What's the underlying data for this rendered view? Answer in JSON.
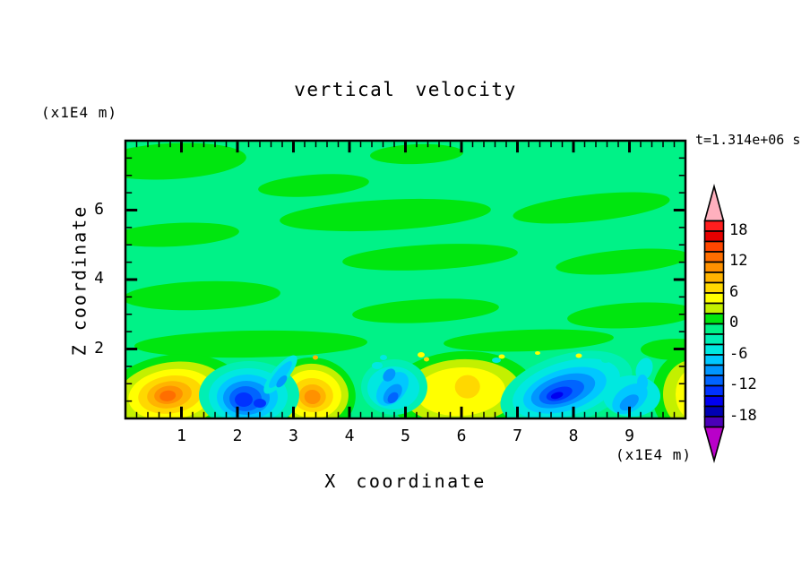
{
  "figure": {
    "title": "vertical velocity",
    "time_annotation": "t=1.314e+06 s"
  },
  "axes": {
    "x": {
      "label": "X coordinate",
      "units_label": "(x1E4 m)",
      "min": 0,
      "max": 10,
      "major_ticks": [
        1,
        2,
        3,
        4,
        5,
        6,
        7,
        8,
        9
      ],
      "minor_step": 0.2
    },
    "z": {
      "label": "Z coordinate",
      "units_label": "(x1E4 m)",
      "min": 0,
      "max": 8,
      "major_ticks": [
        2,
        4,
        6
      ],
      "minor_step": 0.5
    }
  },
  "colorbar": {
    "labels": [
      18,
      12,
      6,
      0,
      -6,
      -12,
      -18
    ],
    "over_color": "#FFB0BE",
    "under_color": "#B900C9",
    "bands": [
      {
        "from": 18,
        "to": 20,
        "color": "#FF1E1E"
      },
      {
        "from": 16,
        "to": 18,
        "color": "#E60000"
      },
      {
        "from": 14,
        "to": 16,
        "color": "#FF4600"
      },
      {
        "from": 12,
        "to": 14,
        "color": "#FF6E00"
      },
      {
        "from": 10,
        "to": 12,
        "color": "#FF9100"
      },
      {
        "from": 8,
        "to": 10,
        "color": "#FFB400"
      },
      {
        "from": 6,
        "to": 8,
        "color": "#FFD800"
      },
      {
        "from": 4,
        "to": 6,
        "color": "#FFFF00"
      },
      {
        "from": 2,
        "to": 4,
        "color": "#C3F000"
      },
      {
        "from": 0,
        "to": 2,
        "color": "#00E60F"
      },
      {
        "from": -2,
        "to": 0,
        "color": "#00F287"
      },
      {
        "from": -4,
        "to": -2,
        "color": "#00EFB4"
      },
      {
        "from": -6,
        "to": -4,
        "color": "#00E8E0"
      },
      {
        "from": -8,
        "to": -6,
        "color": "#00C8FF"
      },
      {
        "from": -10,
        "to": -8,
        "color": "#0096FF"
      },
      {
        "from": -12,
        "to": -10,
        "color": "#0064FF"
      },
      {
        "from": -14,
        "to": -12,
        "color": "#0032FF"
      },
      {
        "from": -16,
        "to": -14,
        "color": "#0000F0"
      },
      {
        "from": -18,
        "to": -16,
        "color": "#0000B4"
      },
      {
        "from": -20,
        "to": -18,
        "color": "#4B00B9"
      }
    ]
  },
  "chart_data": {
    "type": "filled_contour",
    "title": "vertical velocity",
    "xlabel": "X coordinate (x1E4 m)",
    "ylabel": "Z coordinate (x1E4 m)",
    "time_annotation": "t=1.314e+06 s",
    "x_range": [
      0,
      10
    ],
    "z_range": [
      0,
      8
    ],
    "contour_interval": 2,
    "level_min": -20,
    "level_max": 20,
    "colorbar_labeled_levels": [
      18,
      12,
      6,
      0,
      -6,
      -12,
      -18
    ],
    "field_description": "Weak alternating horizontal bands between -2 and +2 aloft (z>2); strong alternating updraft/downdraft convective cells below z≈1.8",
    "cells": [
      {
        "x": 0.85,
        "z": 0.7,
        "peak": 13,
        "sign": "updraft"
      },
      {
        "x": 2.2,
        "z": 0.55,
        "peak": -13,
        "sign": "downdraft"
      },
      {
        "x": 3.35,
        "z": 0.7,
        "peak": 11,
        "sign": "updraft"
      },
      {
        "x": 4.8,
        "z": 0.8,
        "peak": -13,
        "sign": "downdraft"
      },
      {
        "x": 6.0,
        "z": 0.8,
        "peak": 7,
        "sign": "updraft"
      },
      {
        "x": 7.9,
        "z": 0.85,
        "peak": -17,
        "sign": "downdraft"
      },
      {
        "x": 9.05,
        "z": 0.6,
        "peak": -9,
        "sign": "downdraft"
      },
      {
        "x": 10.0,
        "z": 0.7,
        "peak": 5,
        "sign": "updraft"
      }
    ]
  }
}
